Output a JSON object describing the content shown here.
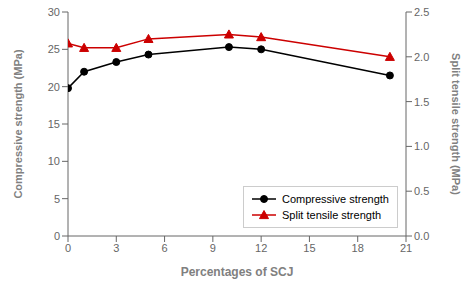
{
  "chart_data": {
    "type": "line",
    "xlabel": "Percentages of SCJ",
    "ylabel": "Compressive strength (MPa)",
    "y2label": "Split tensile strength (MPa)",
    "x": [
      0,
      1,
      3,
      5,
      10,
      12,
      20
    ],
    "series": [
      {
        "name": "Compressive strength",
        "color": "#000000",
        "marker": "circle",
        "values": [
          19.8,
          22.0,
          23.3,
          24.3,
          25.3,
          25.0,
          21.5
        ]
      },
      {
        "name": "Split tensile strength",
        "color": "#cc0000",
        "marker": "triangle",
        "axis": "y2",
        "values": [
          2.15,
          2.1,
          2.1,
          2.2,
          2.25,
          2.22,
          2.0
        ]
      }
    ],
    "xlim": [
      0,
      21
    ],
    "xticks": [
      0,
      3,
      6,
      9,
      12,
      15,
      18,
      21
    ],
    "ylim": [
      0,
      30
    ],
    "yticks": [
      0,
      5,
      10,
      15,
      20,
      25,
      30
    ],
    "y2lim": [
      0.0,
      2.5
    ],
    "y2ticks": [
      {
        "value": 0,
        "label": "0.0"
      },
      0.5,
      {
        "value": 1,
        "label": "1.0"
      },
      1.5,
      {
        "value": 2,
        "label": "2.0"
      },
      2.5
    ],
    "legend": "lower right"
  }
}
